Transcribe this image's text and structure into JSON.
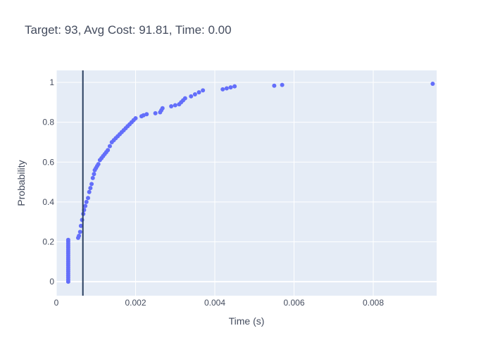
{
  "title": "Target: 93, Avg Cost: 91.81, Time: 0.00",
  "colors": {
    "plot_bg": "#e5ecf6",
    "grid": "#ffffff",
    "marker": "#636efa",
    "vline": "#2a3f5f",
    "text": "#444c5e"
  },
  "chart_data": {
    "type": "scatter",
    "xlabel": "Time (s)",
    "ylabel": "Probability",
    "xlim": [
      0,
      0.0096
    ],
    "ylim": [
      -0.07,
      1.06
    ],
    "x_ticks": [
      0,
      0.002,
      0.004,
      0.006,
      0.008
    ],
    "x_tick_labels": [
      "0",
      "0.002",
      "0.004",
      "0.006",
      "0.008"
    ],
    "y_ticks": [
      0,
      0.2,
      0.4,
      0.6,
      0.8,
      1
    ],
    "y_tick_labels": [
      "0",
      "0.2",
      "0.4",
      "0.6",
      "0.8",
      "1"
    ],
    "grid": true,
    "vertical_line_x": 0.00067,
    "series": [
      {
        "color": "#636efa",
        "x": [
          0.0003,
          0.0003,
          0.0003,
          0.0003,
          0.0003,
          0.0003,
          0.0003,
          0.0003,
          0.0003,
          0.0003,
          0.0003,
          0.0003,
          0.0003,
          0.0003,
          0.0003,
          0.0003,
          0.0003,
          0.0003,
          0.0003,
          0.0003,
          0.0003,
          0.0003,
          0.00055,
          0.00057,
          0.0006,
          0.00062,
          0.00065,
          0.00068,
          0.0007,
          0.00073,
          0.00076,
          0.0008,
          0.00083,
          0.00086,
          0.00089,
          0.00092,
          0.00095,
          0.00097,
          0.001,
          0.00103,
          0.00106,
          0.0011,
          0.00114,
          0.00118,
          0.00122,
          0.00126,
          0.0013,
          0.00135,
          0.0014,
          0.00145,
          0.0015,
          0.00155,
          0.0016,
          0.00165,
          0.0017,
          0.00175,
          0.0018,
          0.00185,
          0.0019,
          0.00195,
          0.002,
          0.00215,
          0.0022,
          0.00228,
          0.0025,
          0.00262,
          0.00265,
          0.00268,
          0.0029,
          0.003,
          0.0031,
          0.00315,
          0.0032,
          0.00325,
          0.0034,
          0.0035,
          0.0036,
          0.0037,
          0.0042,
          0.0043,
          0.0044,
          0.0045,
          0.0055,
          0.0057,
          0.0095
        ],
        "y": [
          0.0,
          0.01,
          0.02,
          0.03,
          0.04,
          0.05,
          0.06,
          0.07,
          0.08,
          0.09,
          0.1,
          0.11,
          0.12,
          0.13,
          0.14,
          0.15,
          0.16,
          0.17,
          0.18,
          0.19,
          0.2,
          0.21,
          0.22,
          0.23,
          0.25,
          0.28,
          0.31,
          0.34,
          0.36,
          0.38,
          0.4,
          0.42,
          0.45,
          0.47,
          0.49,
          0.52,
          0.54,
          0.56,
          0.57,
          0.58,
          0.59,
          0.61,
          0.62,
          0.63,
          0.64,
          0.65,
          0.66,
          0.68,
          0.7,
          0.71,
          0.72,
          0.73,
          0.74,
          0.75,
          0.76,
          0.77,
          0.78,
          0.79,
          0.8,
          0.81,
          0.82,
          0.83,
          0.835,
          0.84,
          0.845,
          0.85,
          0.86,
          0.87,
          0.88,
          0.885,
          0.89,
          0.9,
          0.91,
          0.92,
          0.93,
          0.94,
          0.95,
          0.96,
          0.965,
          0.97,
          0.975,
          0.98,
          0.983,
          0.987,
          0.993
        ]
      }
    ]
  }
}
